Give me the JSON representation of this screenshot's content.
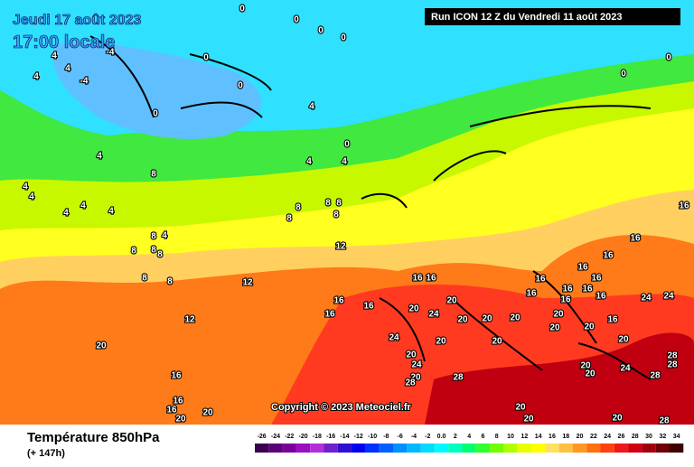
{
  "header": {
    "date": "Jeudi 17 août 2023",
    "time": "17:00 locale",
    "run": "Run ICON 12 Z du Vendredi 11 août 2023"
  },
  "copyright": "Copyright © 2023 Meteociel.fr",
  "footer": {
    "title": "Température 850hPa",
    "lead": "(+ 147h)"
  },
  "legend": {
    "labels": [
      "-26",
      "-24",
      "-22",
      "-20",
      "-18",
      "-16",
      "-14",
      "-12",
      "-10",
      "-8",
      "-6",
      "-4",
      "-2",
      "0.0",
      "2",
      "4",
      "6",
      "8",
      "10",
      "12",
      "14",
      "16",
      "18",
      "20",
      "22",
      "24",
      "26",
      "28",
      "30",
      "32",
      "34"
    ],
    "colors": [
      "#3c0050",
      "#5a0078",
      "#7a009c",
      "#9a10c0",
      "#b030d8",
      "#7020c8",
      "#3010d0",
      "#0000f0",
      "#0030ff",
      "#0060ff",
      "#0090ff",
      "#00b8ff",
      "#00dcff",
      "#00f8ff",
      "#00ffc0",
      "#00ff70",
      "#30ff30",
      "#70ff00",
      "#b0ff00",
      "#e8ff00",
      "#ffff00",
      "#ffe060",
      "#ffc040",
      "#ff9820",
      "#ff7010",
      "#ff4010",
      "#f01818",
      "#d00010",
      "#a00010",
      "#700008",
      "#400000"
    ]
  },
  "map_labels": [
    "0",
    "0",
    "0",
    "0",
    "-4",
    "0",
    "0",
    "0",
    "0",
    "0",
    "0",
    "4",
    "4",
    "4",
    "-4",
    "4",
    "4",
    "4",
    "4",
    "8",
    "4",
    "4",
    "4",
    "4",
    "4",
    "8",
    "8",
    "8",
    "8",
    "8",
    "4",
    "8",
    "8",
    "8",
    "8",
    "8",
    "8",
    "12",
    "12",
    "12",
    "16",
    "16",
    "16",
    "16",
    "16",
    "16",
    "16",
    "16",
    "16",
    "16",
    "16",
    "16",
    "16",
    "16",
    "16",
    "16",
    "16",
    "16",
    "16",
    "16",
    "20",
    "20",
    "20",
    "20",
    "20",
    "20",
    "20",
    "20",
    "20",
    "20",
    "20",
    "20",
    "20",
    "20",
    "20",
    "20",
    "20",
    "20",
    "20",
    "20",
    "24",
    "24",
    "24",
    "24",
    "24",
    "24",
    "28",
    "28",
    "28",
    "28",
    "28",
    "28",
    "20"
  ]
}
